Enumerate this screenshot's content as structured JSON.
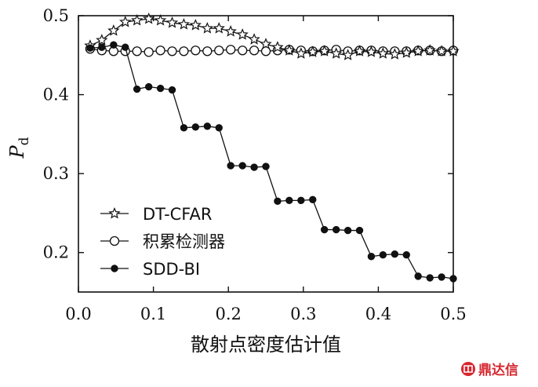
{
  "chart_data": {
    "type": "line",
    "title": "",
    "xlabel": "散射点密度估计值",
    "ylabel": "P",
    "ylabel_subscript": "d",
    "xlim": [
      0.0,
      0.5
    ],
    "ylim": [
      0.15,
      0.5
    ],
    "x_ticks": [
      "0.0",
      "0.1",
      "0.2",
      "0.3",
      "0.4",
      "0.5"
    ],
    "y_ticks": [
      "0.2",
      "0.3",
      "0.4",
      "0.5"
    ],
    "x_tick_values": [
      0.0,
      0.1,
      0.2,
      0.3,
      0.4,
      0.5
    ],
    "y_tick_values": [
      0.2,
      0.3,
      0.4,
      0.5
    ],
    "grid": false,
    "legend_position": "bottom-left",
    "x": [
      0.0156,
      0.0312,
      0.0469,
      0.0625,
      0.0781,
      0.0938,
      0.1094,
      0.125,
      0.1406,
      0.1562,
      0.1719,
      0.1875,
      0.2031,
      0.2188,
      0.2344,
      0.25,
      0.2656,
      0.2812,
      0.2969,
      0.3125,
      0.3281,
      0.3438,
      0.3594,
      0.375,
      0.3906,
      0.4062,
      0.4219,
      0.4375,
      0.4531,
      0.4688,
      0.4844,
      0.5
    ],
    "series": [
      {
        "name": "DT-CFAR",
        "marker": "star",
        "values": [
          0.462,
          0.469,
          0.481,
          0.492,
          0.494,
          0.496,
          0.494,
          0.491,
          0.489,
          0.488,
          0.484,
          0.484,
          0.48,
          0.476,
          0.47,
          0.464,
          0.46,
          0.456,
          0.452,
          0.454,
          0.455,
          0.452,
          0.45,
          0.455,
          0.454,
          0.452,
          0.451,
          0.453,
          0.455,
          0.456,
          0.455,
          0.455
        ]
      },
      {
        "name": "积累检测器",
        "marker": "open-circle",
        "values": [
          0.458,
          0.456,
          0.455,
          0.455,
          0.455,
          0.454,
          0.456,
          0.455,
          0.455,
          0.456,
          0.455,
          0.456,
          0.457,
          0.456,
          0.456,
          0.455,
          0.456,
          0.457,
          0.456,
          0.455,
          0.456,
          0.457,
          0.455,
          0.456,
          0.456,
          0.455,
          0.455,
          0.455,
          0.456,
          0.456,
          0.455,
          0.456
        ]
      },
      {
        "name": "SDD-BI",
        "marker": "filled-circle",
        "values": [
          0.459,
          0.46,
          0.463,
          0.46,
          0.407,
          0.41,
          0.408,
          0.406,
          0.358,
          0.359,
          0.36,
          0.358,
          0.31,
          0.31,
          0.308,
          0.309,
          0.265,
          0.266,
          0.266,
          0.267,
          0.229,
          0.229,
          0.228,
          0.228,
          0.195,
          0.197,
          0.198,
          0.197,
          0.17,
          0.168,
          0.169,
          0.167
        ]
      }
    ]
  },
  "watermark": {
    "text": "鼎达信",
    "color": "#d6262f"
  }
}
